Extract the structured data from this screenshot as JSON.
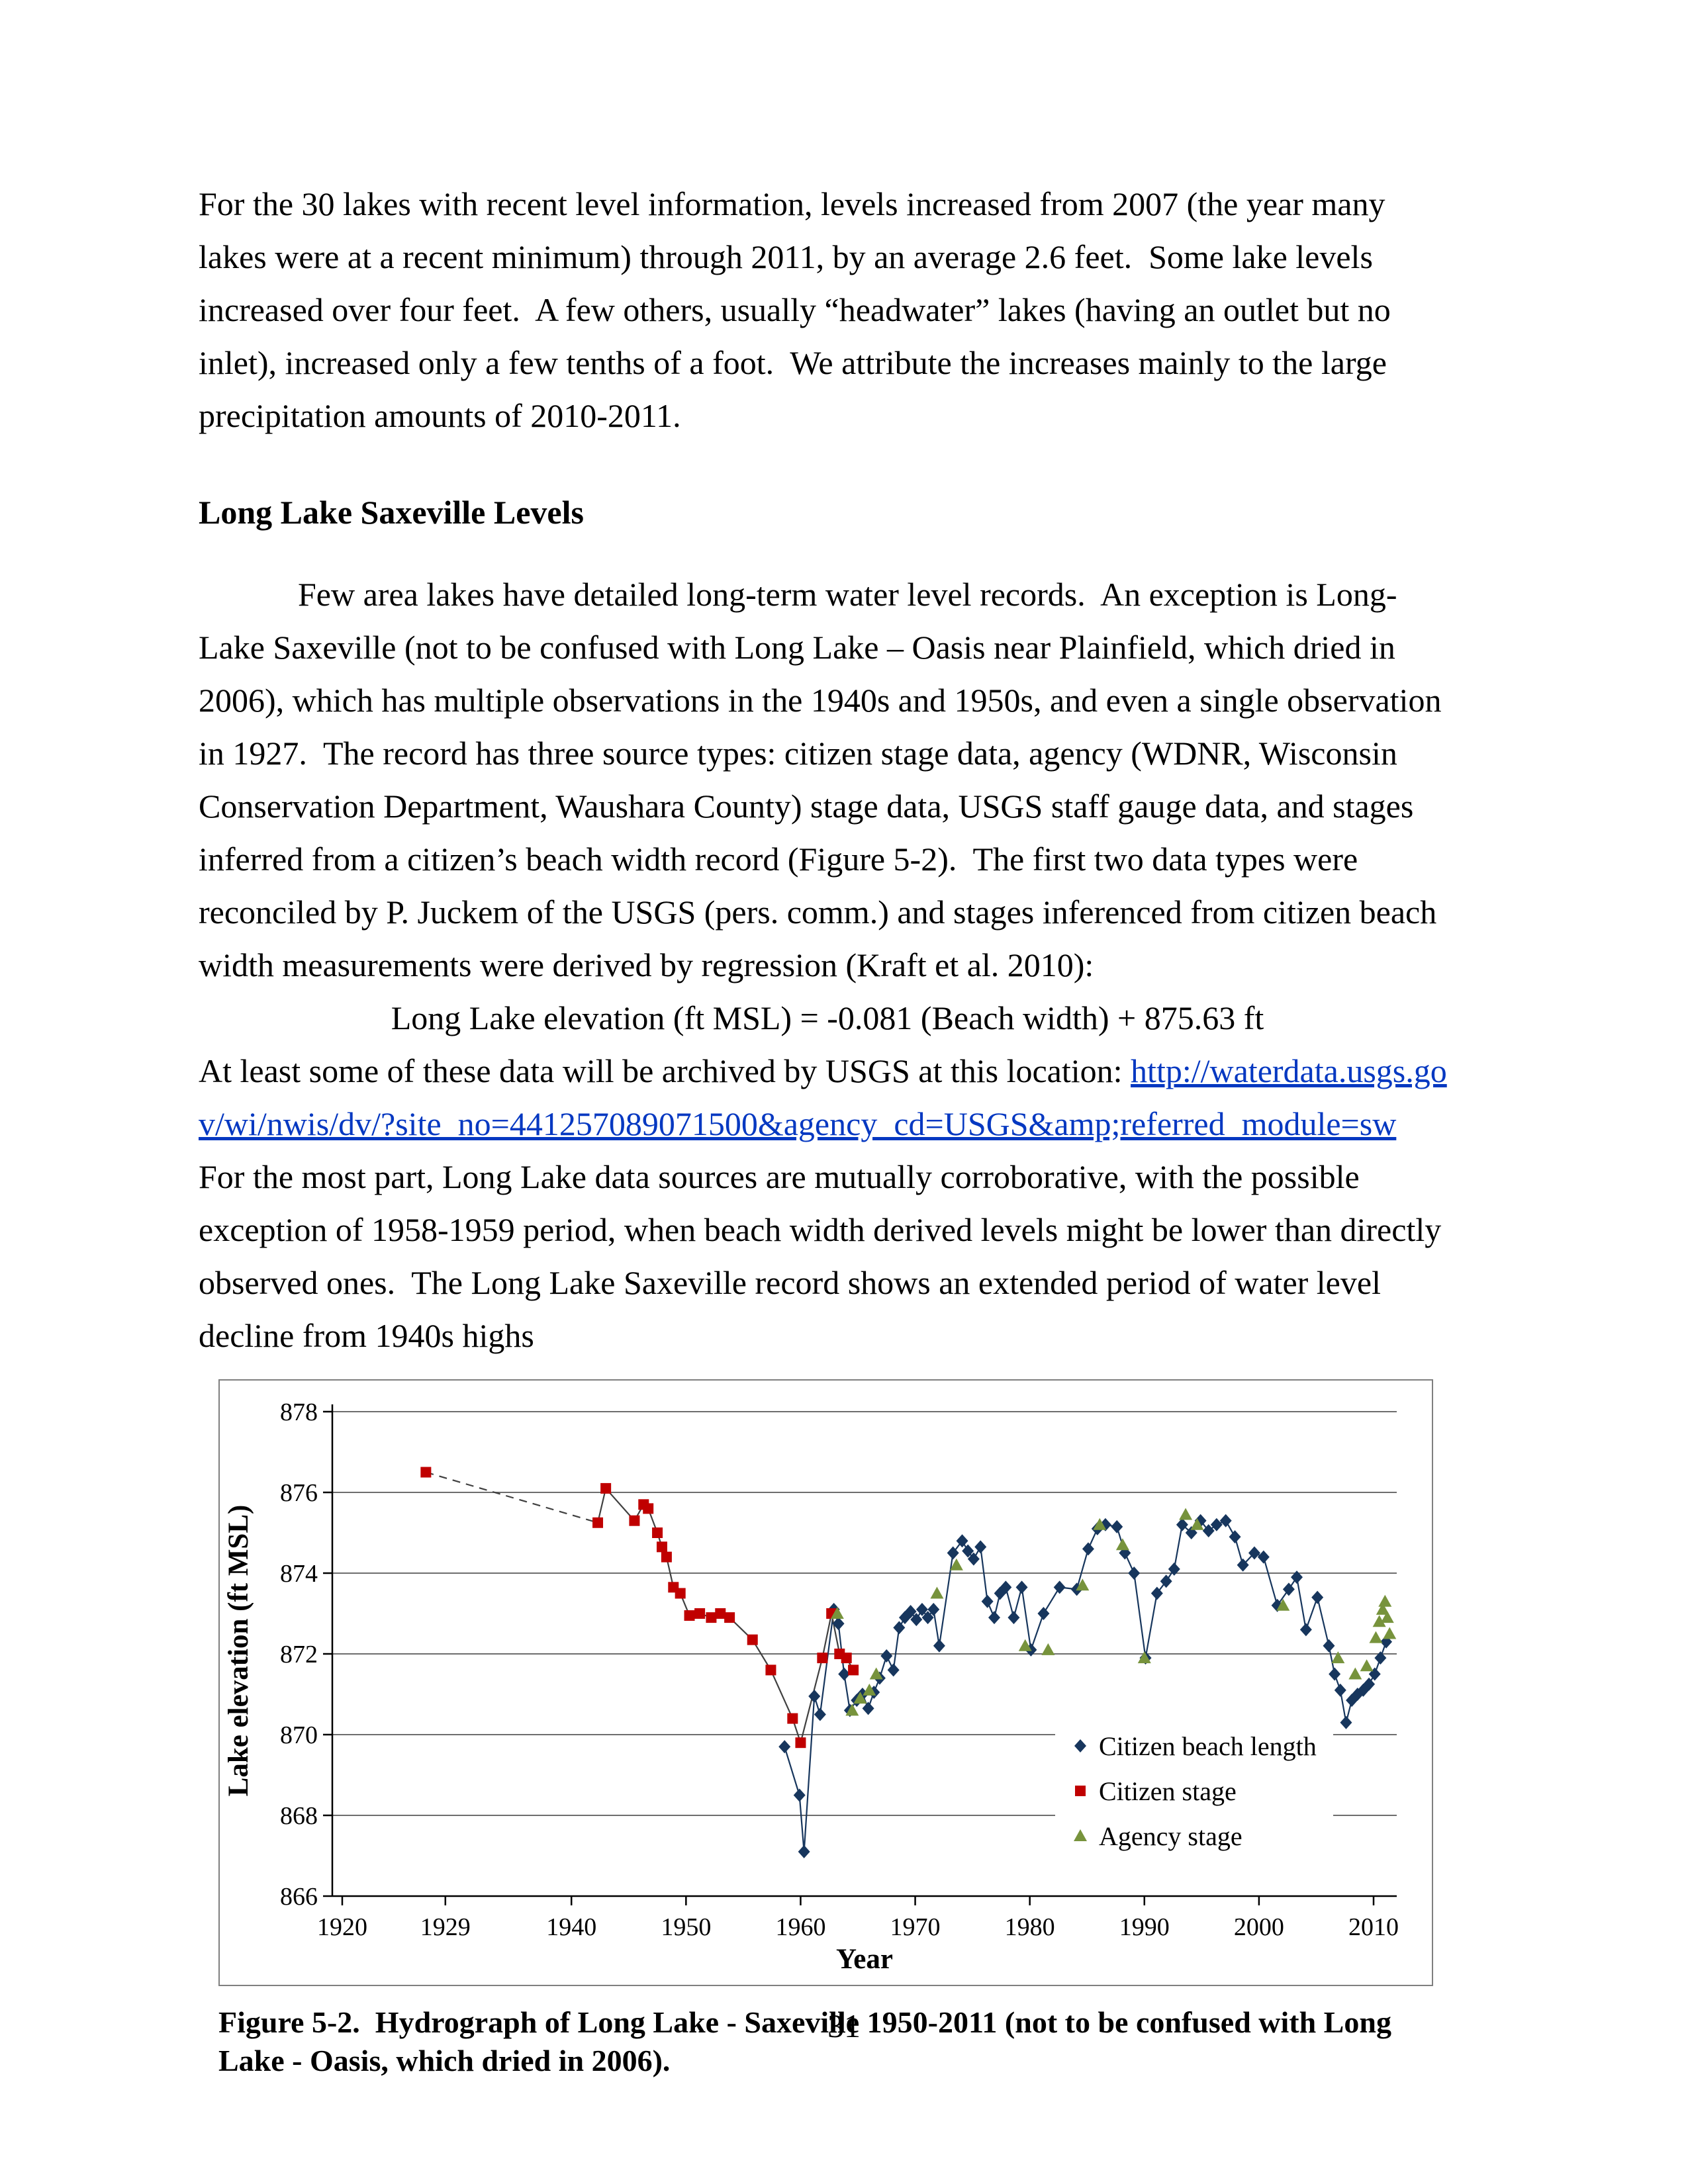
{
  "page": {
    "number": "31"
  },
  "paragraphs": {
    "p1": "For the 30 lakes with recent level information, levels increased from 2007 (the year many lakes were at a recent minimum) through 2011, by an average 2.6 feet.  Some lake levels increased over four feet.  A few others, usually “headwater” lakes (having an outlet but no inlet), increased only a few tenths of a foot.  We attribute the increases mainly to the large precipitation amounts of 2010-2011.",
    "heading": "Long Lake Saxeville Levels",
    "p2": "Few area lakes have detailed long-term water level records.  An exception is Long-Lake Saxeville (not to be confused with Long Lake – Oasis near Plainfield, which dried in 2006), which has multiple observations in the 1940s and 1950s, and even a single observation in 1927.  The record has three source types: citizen stage data, agency (WDNR, Wisconsin Conservation Department, Waushara County) stage data, USGS staff gauge data, and stages inferred from a citizen’s beach width record (Figure 5-2).  The first two data types were reconciled by P. Juckem of the USGS (pers. comm.) and stages inferenced from citizen beach width measurements were derived by regression (Kraft et al. 2010):",
    "equation": "Long Lake elevation (ft MSL) = -0.081 (Beach width) + 875.63 ft",
    "p3_intro": "At least some of these data will be archived by USGS at this location: ",
    "link": "http://waterdata.usgs.gov/wi/nwis/dv/?site_no=441257089071500&agency_cd=USGS&amp;referred_module=sw",
    "p3_rest": "  For the most part, Long Lake data sources are mutually corroborative, with the possible exception of 1958-1959 period, when beach width derived levels might be lower than directly observed ones.  The Long Lake Saxeville record shows an extended period of water level decline from 1940s highs"
  },
  "figure": {
    "caption": "Figure 5-2.  Hydrograph of Long Lake - Saxeville 1950-2011 (not to be confused with Long Lake - Oasis, which dried in 2006)."
  },
  "chart_data": {
    "type": "scatter",
    "title": "",
    "xlabel": "Year",
    "ylabel": "Lake elevation (ft MSL)",
    "xlim": [
      1920,
      2013
    ],
    "ylim": [
      866,
      878
    ],
    "x_ticks": [
      1920,
      1929,
      1940,
      1950,
      1960,
      1970,
      1980,
      1990,
      2000,
      2010
    ],
    "y_ticks": [
      866,
      868,
      870,
      872,
      874,
      876,
      878
    ],
    "grid": true,
    "legend_position": "inside-right",
    "series": [
      {
        "name": "Citizen beach length",
        "marker": "diamond",
        "color": "#17365D",
        "line": "solid",
        "line_color": "#17365D",
        "dashed_first_segment": false,
        "points": [
          [
            1958.6,
            869.7
          ],
          [
            1959.9,
            868.5
          ],
          [
            1960.3,
            867.1
          ],
          [
            1961.2,
            870.95
          ],
          [
            1961.7,
            870.5
          ],
          [
            1962.9,
            873.1
          ],
          [
            1963.3,
            872.75
          ],
          [
            1963.8,
            871.5
          ],
          [
            1964.3,
            870.6
          ],
          [
            1964.9,
            870.85
          ],
          [
            1965.4,
            871.0
          ],
          [
            1965.9,
            870.65
          ],
          [
            1966.4,
            871.05
          ],
          [
            1966.9,
            871.4
          ],
          [
            1967.5,
            871.95
          ],
          [
            1968.1,
            871.6
          ],
          [
            1968.6,
            872.65
          ],
          [
            1969.1,
            872.9
          ],
          [
            1969.6,
            873.05
          ],
          [
            1970.1,
            872.85
          ],
          [
            1970.6,
            873.1
          ],
          [
            1971.1,
            872.9
          ],
          [
            1971.6,
            873.1
          ],
          [
            1972.1,
            872.2
          ],
          [
            1973.3,
            874.5
          ],
          [
            1974.1,
            874.8
          ],
          [
            1974.6,
            874.55
          ],
          [
            1975.1,
            874.35
          ],
          [
            1975.7,
            874.65
          ],
          [
            1976.3,
            873.3
          ],
          [
            1976.9,
            872.9
          ],
          [
            1977.4,
            873.5
          ],
          [
            1977.9,
            873.65
          ],
          [
            1978.6,
            872.9
          ],
          [
            1979.3,
            873.65
          ],
          [
            1980.1,
            872.1
          ],
          [
            1981.2,
            873.0
          ],
          [
            1982.6,
            873.65
          ],
          [
            1984.1,
            873.6
          ],
          [
            1985.1,
            874.6
          ],
          [
            1985.9,
            875.1
          ],
          [
            1986.6,
            875.2
          ],
          [
            1987.6,
            875.15
          ],
          [
            1988.3,
            874.5
          ],
          [
            1989.1,
            874.0
          ],
          [
            1990.1,
            871.9
          ],
          [
            1991.1,
            873.5
          ],
          [
            1991.9,
            873.8
          ],
          [
            1992.6,
            874.1
          ],
          [
            1993.3,
            875.2
          ],
          [
            1994.1,
            875.0
          ],
          [
            1994.9,
            875.3
          ],
          [
            1995.6,
            875.05
          ],
          [
            1996.3,
            875.2
          ],
          [
            1997.1,
            875.3
          ],
          [
            1997.9,
            874.9
          ],
          [
            1998.6,
            874.2
          ],
          [
            1999.6,
            874.5
          ],
          [
            2000.4,
            874.4
          ],
          [
            2001.6,
            873.2
          ],
          [
            2002.6,
            873.6
          ],
          [
            2003.3,
            873.9
          ],
          [
            2004.1,
            872.6
          ],
          [
            2005.1,
            873.4
          ],
          [
            2006.1,
            872.2
          ],
          [
            2006.6,
            871.5
          ],
          [
            2007.1,
            871.1
          ],
          [
            2007.6,
            870.3
          ],
          [
            2008.1,
            870.85
          ],
          [
            2008.6,
            871.0
          ],
          [
            2009.1,
            871.1
          ],
          [
            2009.6,
            871.25
          ],
          [
            2010.1,
            871.5
          ],
          [
            2010.6,
            871.9
          ],
          [
            2011.1,
            872.3
          ]
        ]
      },
      {
        "name": "Citizen stage",
        "marker": "square",
        "color": "#C00000",
        "line": "solid",
        "line_color": "#404040",
        "dashed_first_segment": true,
        "points": [
          [
            1927.3,
            876.5
          ],
          [
            1942.3,
            875.25
          ],
          [
            1943.0,
            876.1
          ],
          [
            1945.5,
            875.3
          ],
          [
            1946.3,
            875.7
          ],
          [
            1946.7,
            875.6
          ],
          [
            1947.5,
            875.0
          ],
          [
            1947.9,
            874.65
          ],
          [
            1948.3,
            874.4
          ],
          [
            1948.9,
            873.65
          ],
          [
            1949.5,
            873.5
          ],
          [
            1950.3,
            872.95
          ],
          [
            1951.2,
            873.0
          ],
          [
            1952.2,
            872.9
          ],
          [
            1953.0,
            873.0
          ],
          [
            1953.8,
            872.9
          ],
          [
            1955.8,
            872.35
          ],
          [
            1957.4,
            871.6
          ],
          [
            1959.3,
            870.4
          ],
          [
            1960.0,
            869.8
          ],
          [
            1961.9,
            871.9
          ],
          [
            1962.7,
            873.0
          ],
          [
            1963.4,
            872.0
          ],
          [
            1964.0,
            871.9
          ],
          [
            1964.6,
            871.6
          ]
        ]
      },
      {
        "name": "Agency stage",
        "marker": "triangle",
        "color": "#77933C",
        "line": "none",
        "line_color": "#77933C",
        "dashed_first_segment": false,
        "points": [
          [
            1963.2,
            873.0
          ],
          [
            1964.5,
            870.6
          ],
          [
            1965.2,
            870.9
          ],
          [
            1966.0,
            871.1
          ],
          [
            1966.6,
            871.5
          ],
          [
            1971.9,
            873.5
          ],
          [
            1973.6,
            874.2
          ],
          [
            1979.6,
            872.2
          ],
          [
            1981.6,
            872.1
          ],
          [
            1984.6,
            873.7
          ],
          [
            1986.1,
            875.2
          ],
          [
            1988.1,
            874.7
          ],
          [
            1990.0,
            871.9
          ],
          [
            1993.6,
            875.45
          ],
          [
            1994.6,
            875.2
          ],
          [
            2002.1,
            873.2
          ],
          [
            2006.9,
            871.9
          ],
          [
            2008.4,
            871.5
          ],
          [
            2009.4,
            871.7
          ],
          [
            2010.2,
            872.4
          ],
          [
            2010.5,
            872.8
          ],
          [
            2010.8,
            873.1
          ],
          [
            2011.0,
            873.3
          ],
          [
            2011.2,
            872.9
          ],
          [
            2011.4,
            872.5
          ]
        ]
      }
    ]
  }
}
